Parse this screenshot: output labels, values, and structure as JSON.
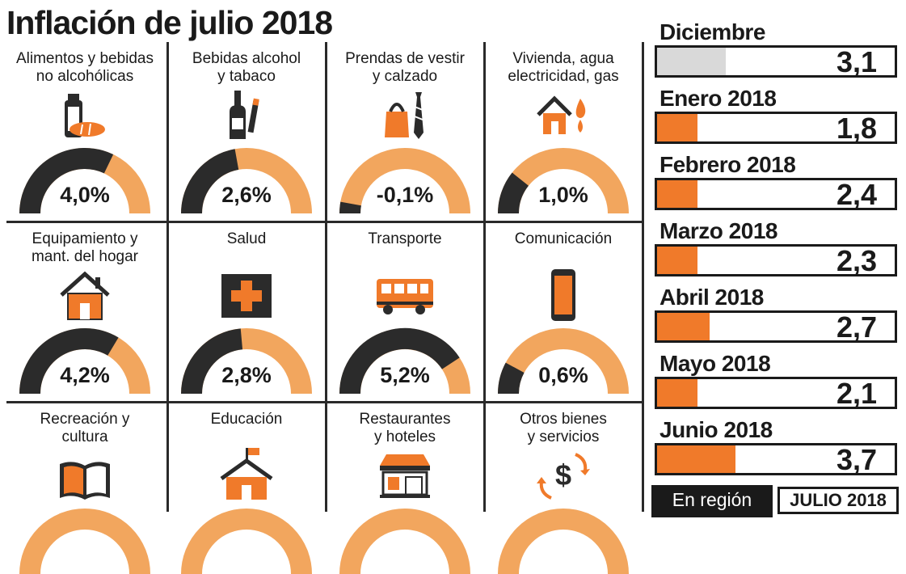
{
  "title": "Inflación de julio 2018",
  "colors": {
    "orange": "#f07a2a",
    "lightOrange": "#f2a65e",
    "dark": "#2b2b2b",
    "gray": "#d9d9d9"
  },
  "chart_data": [
    {
      "type": "gauge",
      "categories": [
        "Alimentos y bebidas\nno alcohólicas",
        "Bebidas alcohol\ny tabaco",
        "Prendas de vestir\ny calzado",
        "Vivienda, agua\nelectricidad, gas",
        "Equipamiento y\nmant. del hogar",
        "Salud",
        "Transporte",
        "Comunicación",
        "Recreación y\ncultura",
        "Educación",
        "Restaurantes\ny hoteles",
        "Otros bienes\ny servicios"
      ],
      "icons": [
        "milk-bread-icon",
        "bottle-cigarette-icon",
        "bag-tie-icon",
        "house-flame-icon",
        "house-icon",
        "medical-cross-icon",
        "bus-icon",
        "smartphone-icon",
        "book-icon",
        "school-icon",
        "store-icon",
        "dollar-arrows-icon"
      ],
      "values": [
        4.0,
        2.6,
        -0.1,
        1.0,
        4.2,
        2.8,
        5.2,
        0.6,
        null,
        null,
        null,
        null
      ],
      "labels": [
        "4,0%",
        "2,6%",
        "-0,1%",
        "1,0%",
        "4,2%",
        "2,8%",
        "5,2%",
        "0,6%",
        "",
        "",
        "",
        ""
      ]
    },
    {
      "type": "bar",
      "categories": [
        "Diciembre",
        "Enero 2018",
        "Febrero 2018",
        "Marzo 2018",
        "Abril 2018",
        "Mayo 2018",
        "Junio 2018"
      ],
      "values": [
        3.1,
        1.8,
        2.4,
        2.3,
        2.7,
        2.1,
        3.7
      ],
      "labels": [
        "3,1",
        "1,8",
        "2,4",
        "2,3",
        "2,7",
        "2,1",
        "3,7"
      ],
      "fill_fraction": [
        0.29,
        0.17,
        0.17,
        0.17,
        0.22,
        0.17,
        0.33
      ],
      "colors": [
        "#d9d9d9",
        "#f07a2a",
        "#f07a2a",
        "#f07a2a",
        "#f07a2a",
        "#f07a2a",
        "#f07a2a"
      ]
    }
  ],
  "footer": {
    "region": "En región",
    "month": "JULIO 2018"
  }
}
